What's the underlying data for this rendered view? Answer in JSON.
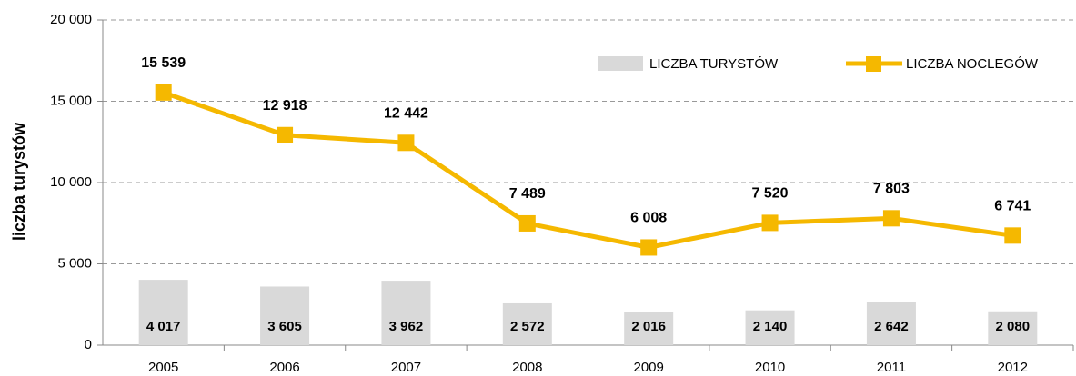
{
  "chart_data": {
    "type": "bar",
    "y_label": "liczba turystów",
    "categories": [
      "2005",
      "2006",
      "2007",
      "2008",
      "2009",
      "2010",
      "2011",
      "2012"
    ],
    "series": [
      {
        "name": "LICZBA TURYSTÓW",
        "type": "bar",
        "color": "#d9d9d9",
        "values": [
          4017,
          3605,
          3962,
          2572,
          2016,
          2140,
          2642,
          2080
        ],
        "value_labels": [
          "4 017",
          "3 605",
          "3 962",
          "2 572",
          "2 016",
          "2 140",
          "2 642",
          "2 080"
        ]
      },
      {
        "name": "LICZBA NOCLEGÓW",
        "type": "line",
        "color": "#f5b800",
        "values": [
          15539,
          12918,
          12442,
          7489,
          6008,
          7520,
          7803,
          6741
        ],
        "value_labels": [
          "15 539",
          "12 918",
          "12 442",
          "7 489",
          "6 008",
          "7 520",
          "7 803",
          "6 741"
        ]
      }
    ],
    "ylim": [
      0,
      20000
    ],
    "yticks": [
      0,
      {
        "value": 5000,
        "label": "5 000"
      },
      {
        "value": 10000,
        "label": "10 000"
      },
      {
        "value": 15000,
        "label": "15 000"
      },
      {
        "value": 20000,
        "label": "20 000"
      }
    ],
    "grid": true,
    "legend": "top-right"
  }
}
